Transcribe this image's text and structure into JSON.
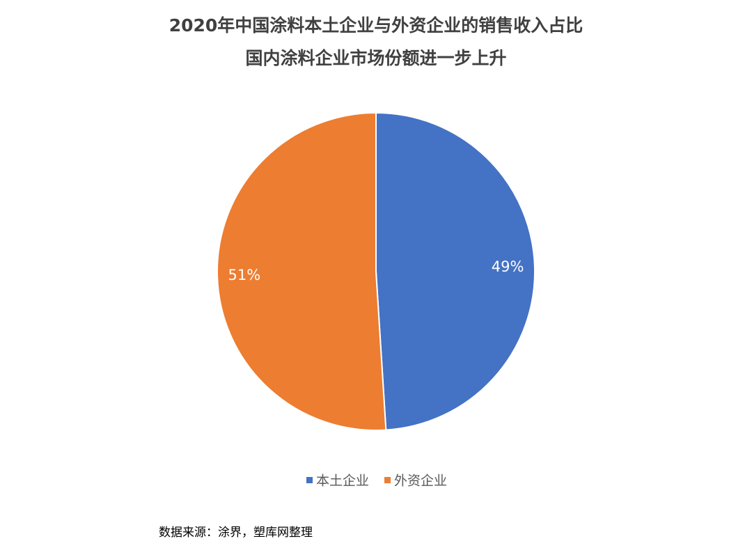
{
  "chart_data": {
    "type": "pie",
    "title": "2020年中国涂料本土企业与外资企业的销售收入占比",
    "subtitle": "国内涂料企业市场份额进一步上升",
    "series": [
      {
        "name": "本土企业",
        "color": "#4472c4",
        "values": [
          49
        ],
        "value_labels": [
          "49%"
        ]
      },
      {
        "name": "外资企业",
        "color": "#ed7d31",
        "values": [
          51
        ],
        "value_labels": [
          "51%"
        ]
      }
    ],
    "legend": "bottom",
    "source": "数据来源：涂界，塑库网整理"
  }
}
